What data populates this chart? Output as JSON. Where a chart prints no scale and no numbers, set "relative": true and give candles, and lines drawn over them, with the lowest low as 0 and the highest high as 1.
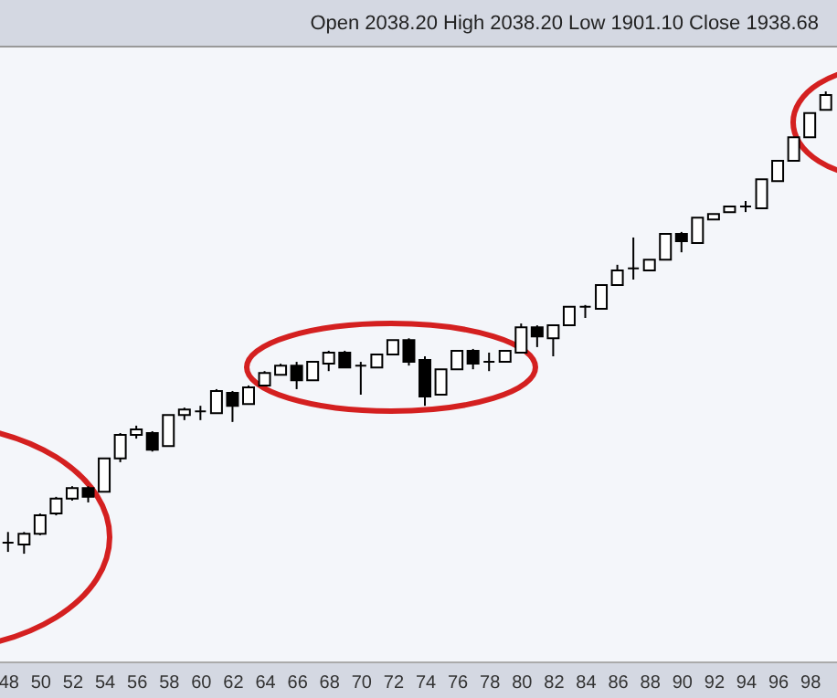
{
  "chart_data": {
    "type": "candlestick",
    "relative": true,
    "annotations": [
      "Open 2038.20 High 2038.20 Low 1901.10 Close 1938.68"
    ],
    "x": [
      48,
      49,
      50,
      51,
      52,
      53,
      54,
      55,
      56,
      57,
      58,
      59,
      60,
      61,
      62,
      63,
      64,
      65,
      66,
      67,
      68,
      69,
      70,
      71,
      72,
      73,
      74,
      75,
      76,
      77,
      78,
      79,
      80,
      81,
      82,
      83,
      84,
      85,
      86,
      87,
      88,
      89,
      90,
      91,
      92,
      93,
      94,
      95,
      96,
      97,
      98,
      99
    ],
    "xlim": [
      47.5,
      99.7
    ],
    "xticks": [
      48,
      50,
      52,
      54,
      56,
      58,
      60,
      62,
      64,
      66,
      68,
      70,
      72,
      74,
      76,
      78,
      80,
      82,
      84,
      86,
      88,
      90,
      92,
      94,
      96,
      98
    ],
    "ohlc": [
      [
        0.024,
        0.047,
        0.004,
        0.024
      ],
      [
        0.02,
        0.047,
        0,
        0.043
      ],
      [
        0.043,
        0.087,
        0.04,
        0.083
      ],
      [
        0.087,
        0.123,
        0.083,
        0.119
      ],
      [
        0.119,
        0.146,
        0.115,
        0.142
      ],
      [
        0.142,
        0.146,
        0.111,
        0.123
      ],
      [
        0.134,
        0.206,
        0.134,
        0.206
      ],
      [
        0.206,
        0.261,
        0.198,
        0.257
      ],
      [
        0.257,
        0.277,
        0.249,
        0.269
      ],
      [
        0.261,
        0.265,
        0.221,
        0.225
      ],
      [
        0.233,
        0.3,
        0.233,
        0.3
      ],
      [
        0.3,
        0.316,
        0.289,
        0.312
      ],
      [
        0.308,
        0.32,
        0.289,
        0.308
      ],
      [
        0.304,
        0.356,
        0.304,
        0.352
      ],
      [
        0.348,
        0.352,
        0.285,
        0.32
      ],
      [
        0.324,
        0.364,
        0.324,
        0.36
      ],
      [
        0.364,
        0.395,
        0.364,
        0.391
      ],
      [
        0.387,
        0.411,
        0.387,
        0.407
      ],
      [
        0.407,
        0.415,
        0.356,
        0.375
      ],
      [
        0.375,
        0.415,
        0.375,
        0.415
      ],
      [
        0.411,
        0.439,
        0.395,
        0.435
      ],
      [
        0.435,
        0.439,
        0.403,
        0.403
      ],
      [
        0.407,
        0.415,
        0.344,
        0.407
      ],
      [
        0.403,
        0.431,
        0.403,
        0.431
      ],
      [
        0.431,
        0.462,
        0.431,
        0.462
      ],
      [
        0.462,
        0.466,
        0.407,
        0.415
      ],
      [
        0.419,
        0.427,
        0.32,
        0.34
      ],
      [
        0.344,
        0.399,
        0.344,
        0.399
      ],
      [
        0.399,
        0.439,
        0.399,
        0.439
      ],
      [
        0.439,
        0.443,
        0.399,
        0.411
      ],
      [
        0.415,
        0.435,
        0.395,
        0.415
      ],
      [
        0.415,
        0.439,
        0.415,
        0.439
      ],
      [
        0.435,
        0.498,
        0.435,
        0.49
      ],
      [
        0.49,
        0.494,
        0.447,
        0.47
      ],
      [
        0.466,
        0.494,
        0.427,
        0.494
      ],
      [
        0.494,
        0.534,
        0.494,
        0.534
      ],
      [
        0.534,
        0.538,
        0.51,
        0.534
      ],
      [
        0.53,
        0.581,
        0.53,
        0.581
      ],
      [
        0.581,
        0.625,
        0.581,
        0.613
      ],
      [
        0.617,
        0.684,
        0.593,
        0.617
      ],
      [
        0.613,
        0.636,
        0.613,
        0.636
      ],
      [
        0.636,
        0.692,
        0.636,
        0.692
      ],
      [
        0.692,
        0.696,
        0.652,
        0.676
      ],
      [
        0.672,
        0.727,
        0.672,
        0.727
      ],
      [
        0.723,
        0.735,
        0.723,
        0.735
      ],
      [
        0.739,
        0.751,
        0.739,
        0.751
      ],
      [
        0.751,
        0.763,
        0.739,
        0.751
      ],
      [
        0.747,
        0.81,
        0.747,
        0.81
      ],
      [
        0.806,
        0.85,
        0.806,
        0.85
      ],
      [
        0.85,
        0.901,
        0.85,
        0.901
      ],
      [
        0.901,
        0.953,
        0.901,
        0.953
      ],
      [
        0.96,
        1,
        0.96,
        0.992
      ]
    ]
  }
}
